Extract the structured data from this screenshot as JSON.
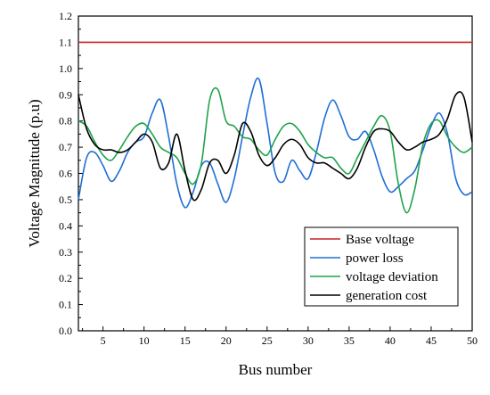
{
  "chart_data": {
    "type": "line",
    "title": "",
    "xlabel": "Bus number",
    "ylabel": "Voltage Magnitude (p.u)",
    "xlim": [
      2,
      50
    ],
    "ylim": [
      0.0,
      1.2
    ],
    "xticks": [
      5,
      10,
      15,
      20,
      25,
      30,
      35,
      40,
      45,
      50
    ],
    "yticks": [
      0.0,
      0.1,
      0.2,
      0.3,
      0.4,
      0.5,
      0.6,
      0.7,
      0.8,
      0.9,
      1.0,
      1.1,
      1.2
    ],
    "grid": false,
    "legend": "bottom-right",
    "x": [
      2,
      3,
      4,
      5,
      6,
      7,
      8,
      9,
      10,
      11,
      12,
      13,
      14,
      15,
      16,
      17,
      18,
      19,
      20,
      21,
      22,
      23,
      24,
      25,
      26,
      27,
      28,
      29,
      30,
      31,
      32,
      33,
      34,
      35,
      36,
      37,
      38,
      39,
      40,
      41,
      42,
      43,
      44,
      45,
      46,
      47,
      48,
      49,
      50
    ],
    "series": [
      {
        "name": "Base voltage",
        "color": "#cc2222",
        "values": [
          1.1,
          1.1,
          1.1,
          1.1,
          1.1,
          1.1,
          1.1,
          1.1,
          1.1,
          1.1,
          1.1,
          1.1,
          1.1,
          1.1,
          1.1,
          1.1,
          1.1,
          1.1,
          1.1,
          1.1,
          1.1,
          1.1,
          1.1,
          1.1,
          1.1,
          1.1,
          1.1,
          1.1,
          1.1,
          1.1,
          1.1,
          1.1,
          1.1,
          1.1,
          1.1,
          1.1,
          1.1,
          1.1,
          1.1,
          1.1,
          1.1,
          1.1,
          1.1,
          1.1,
          1.1,
          1.1,
          1.1,
          1.1,
          1.1
        ]
      },
      {
        "name": "power loss",
        "color": "#1f6fd6",
        "values": [
          0.5,
          0.66,
          0.68,
          0.63,
          0.57,
          0.61,
          0.68,
          0.72,
          0.74,
          0.83,
          0.88,
          0.74,
          0.56,
          0.47,
          0.53,
          0.63,
          0.64,
          0.56,
          0.49,
          0.58,
          0.74,
          0.89,
          0.96,
          0.79,
          0.6,
          0.57,
          0.65,
          0.61,
          0.58,
          0.68,
          0.81,
          0.88,
          0.82,
          0.74,
          0.73,
          0.76,
          0.69,
          0.59,
          0.53,
          0.55,
          0.58,
          0.61,
          0.69,
          0.78,
          0.83,
          0.75,
          0.58,
          0.52,
          0.53
        ]
      },
      {
        "name": "voltage deviation",
        "color": "#1fa34a",
        "values": [
          0.8,
          0.78,
          0.72,
          0.67,
          0.65,
          0.69,
          0.74,
          0.78,
          0.79,
          0.75,
          0.7,
          0.68,
          0.66,
          0.6,
          0.56,
          0.64,
          0.88,
          0.92,
          0.8,
          0.78,
          0.74,
          0.73,
          0.69,
          0.67,
          0.73,
          0.78,
          0.79,
          0.76,
          0.71,
          0.68,
          0.66,
          0.66,
          0.62,
          0.6,
          0.66,
          0.72,
          0.78,
          0.82,
          0.76,
          0.56,
          0.45,
          0.54,
          0.71,
          0.79,
          0.8,
          0.74,
          0.7,
          0.68,
          0.7
        ]
      },
      {
        "name": "generation cost",
        "color": "#000000",
        "values": [
          0.9,
          0.77,
          0.71,
          0.69,
          0.69,
          0.68,
          0.69,
          0.72,
          0.75,
          0.72,
          0.62,
          0.64,
          0.75,
          0.61,
          0.5,
          0.54,
          0.64,
          0.65,
          0.6,
          0.67,
          0.79,
          0.76,
          0.67,
          0.63,
          0.66,
          0.71,
          0.73,
          0.71,
          0.66,
          0.64,
          0.64,
          0.62,
          0.6,
          0.58,
          0.62,
          0.7,
          0.76,
          0.77,
          0.76,
          0.72,
          0.69,
          0.7,
          0.72,
          0.73,
          0.75,
          0.81,
          0.9,
          0.89,
          0.72
        ]
      }
    ]
  }
}
